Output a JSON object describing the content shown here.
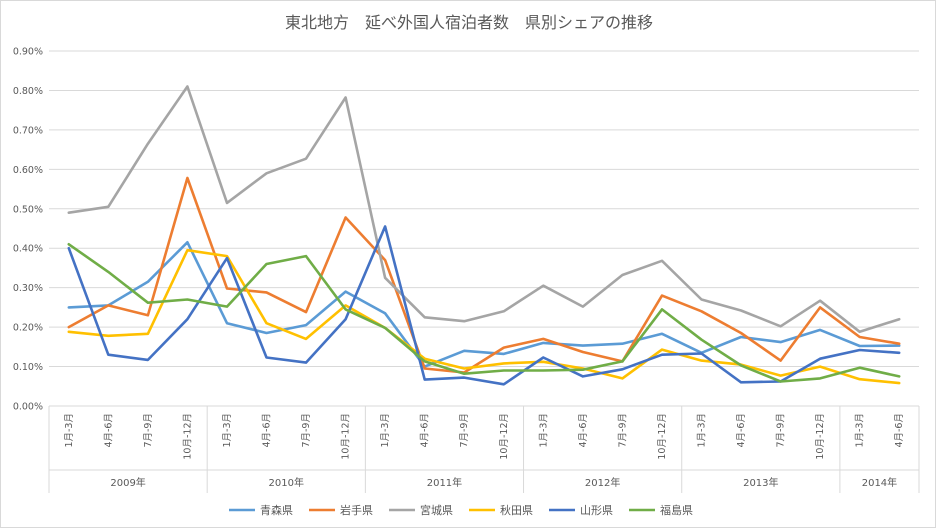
{
  "chart_data": {
    "type": "line",
    "title": "東北地方　延べ外国人宿泊者数　県別シェアの推移",
    "y_ticks": [
      "0.00%",
      "0.10%",
      "0.20%",
      "0.30%",
      "0.40%",
      "0.50%",
      "0.60%",
      "0.70%",
      "0.80%",
      "0.90%"
    ],
    "ylim": [
      0,
      0.9
    ],
    "categories": [
      "1月-3月",
      "4月-6月",
      "7月-9月",
      "10月-12月",
      "1月-3月",
      "4月-6月",
      "7月-9月",
      "10月-12月",
      "1月-3月",
      "4月-6月",
      "7月-9月",
      "10月-12月",
      "1月-3月",
      "4月-6月",
      "7月-9月",
      "10月-12月",
      "1月-3月",
      "4月-6月",
      "7月-9月",
      "10月-12月",
      "1月-3月",
      "4月-6月"
    ],
    "year_groups": [
      {
        "label": "2009年",
        "count": 4
      },
      {
        "label": "2010年",
        "count": 4
      },
      {
        "label": "2011年",
        "count": 4
      },
      {
        "label": "2012年",
        "count": 4
      },
      {
        "label": "2013年",
        "count": 4
      },
      {
        "label": "2014年",
        "count": 2
      }
    ],
    "series": [
      {
        "name": "青森県",
        "color": "#5B9BD5",
        "values": [
          0.25,
          0.255,
          0.315,
          0.415,
          0.21,
          0.185,
          0.205,
          0.29,
          0.235,
          0.1,
          0.14,
          0.132,
          0.16,
          0.153,
          0.158,
          0.183,
          0.135,
          0.175,
          0.162,
          0.193,
          0.152,
          0.153
        ]
      },
      {
        "name": "岩手県",
        "color": "#ED7D31",
        "values": [
          0.2,
          0.255,
          0.23,
          0.578,
          0.298,
          0.288,
          0.238,
          0.478,
          0.37,
          0.095,
          0.085,
          0.148,
          0.17,
          0.137,
          0.113,
          0.28,
          0.24,
          0.185,
          0.115,
          0.25,
          0.175,
          0.158
        ]
      },
      {
        "name": "宮城県",
        "color": "#A5A5A5",
        "values": [
          0.49,
          0.505,
          0.665,
          0.81,
          0.515,
          0.59,
          0.627,
          0.782,
          0.325,
          0.225,
          0.215,
          0.24,
          0.305,
          0.252,
          0.332,
          0.368,
          0.27,
          0.242,
          0.202,
          0.267,
          0.188,
          0.22
        ]
      },
      {
        "name": "秋田県",
        "color": "#FFC000",
        "values": [
          0.188,
          0.178,
          0.183,
          0.395,
          0.38,
          0.21,
          0.17,
          0.255,
          0.198,
          0.12,
          0.095,
          0.108,
          0.112,
          0.095,
          0.07,
          0.143,
          0.115,
          0.105,
          0.077,
          0.1,
          0.068,
          0.058
        ]
      },
      {
        "name": "山形県",
        "color": "#4472C4",
        "values": [
          0.4,
          0.13,
          0.117,
          0.22,
          0.375,
          0.123,
          0.11,
          0.22,
          0.455,
          0.067,
          0.072,
          0.055,
          0.123,
          0.075,
          0.093,
          0.13,
          0.133,
          0.06,
          0.062,
          0.12,
          0.142,
          0.135
        ]
      },
      {
        "name": "福島県",
        "color": "#70AD47",
        "values": [
          0.41,
          0.34,
          0.262,
          0.27,
          0.252,
          0.36,
          0.38,
          0.245,
          0.198,
          0.113,
          0.082,
          0.09,
          0.09,
          0.092,
          0.113,
          0.245,
          0.168,
          0.103,
          0.062,
          0.07,
          0.097,
          0.075
        ]
      }
    ]
  }
}
